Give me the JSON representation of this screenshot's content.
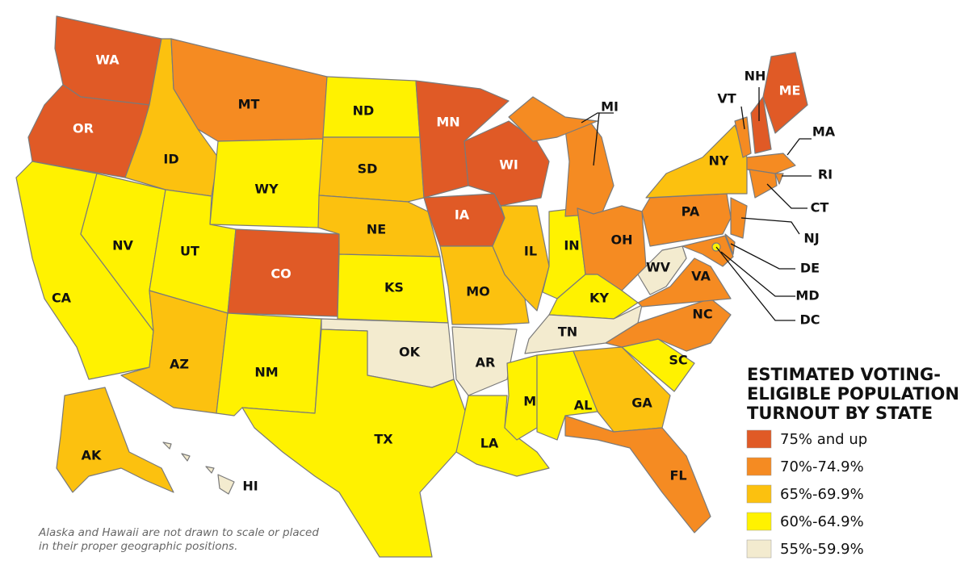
{
  "title": "ESTIMATED VOTING-ELIGIBLE POPULATION TURNOUT BY STATE",
  "legend": [
    {
      "label": "75% and up",
      "color": "#e05a26"
    },
    {
      "label": "70%-74.9%",
      "color": "#f58b22"
    },
    {
      "label": "65%-69.9%",
      "color": "#fcc10f"
    },
    {
      "label": "60%-64.9%",
      "color": "#fff200"
    },
    {
      "label": "55%-59.9%",
      "color": "#f3ebcf"
    }
  ],
  "states": [
    {
      "abbr": "WA",
      "color": "#e05a26"
    },
    {
      "abbr": "OR",
      "color": "#e05a26"
    },
    {
      "abbr": "CA",
      "color": "#fff200"
    },
    {
      "abbr": "NV",
      "color": "#fff200"
    },
    {
      "abbr": "ID",
      "color": "#fcc10f"
    },
    {
      "abbr": "MT",
      "color": "#f58b22"
    },
    {
      "abbr": "WY",
      "color": "#fff200"
    },
    {
      "abbr": "UT",
      "color": "#fff200"
    },
    {
      "abbr": "CO",
      "color": "#e05a26"
    },
    {
      "abbr": "AZ",
      "color": "#fcc10f"
    },
    {
      "abbr": "NM",
      "color": "#fff200"
    },
    {
      "abbr": "ND",
      "color": "#fff200"
    },
    {
      "abbr": "SD",
      "color": "#fcc10f"
    },
    {
      "abbr": "NE",
      "color": "#fcc10f"
    },
    {
      "abbr": "KS",
      "color": "#fff200"
    },
    {
      "abbr": "OK",
      "color": "#f3ebcf"
    },
    {
      "abbr": "TX",
      "color": "#fff200"
    },
    {
      "abbr": "MN",
      "color": "#e05a26"
    },
    {
      "abbr": "IA",
      "color": "#e05a26"
    },
    {
      "abbr": "MO",
      "color": "#fcc10f"
    },
    {
      "abbr": "AR",
      "color": "#f3ebcf"
    },
    {
      "abbr": "LA",
      "color": "#fff200"
    },
    {
      "abbr": "WI",
      "color": "#e05a26"
    },
    {
      "abbr": "IL",
      "color": "#fcc10f"
    },
    {
      "abbr": "IN",
      "color": "#fff200"
    },
    {
      "abbr": "MI",
      "color": "#f58b22"
    },
    {
      "abbr": "OH",
      "color": "#f58b22"
    },
    {
      "abbr": "KY",
      "color": "#fff200"
    },
    {
      "abbr": "TN",
      "color": "#f3ebcf"
    },
    {
      "abbr": "MS",
      "color": "#fff200"
    },
    {
      "abbr": "AL",
      "color": "#fff200"
    },
    {
      "abbr": "GA",
      "color": "#fcc10f"
    },
    {
      "abbr": "FL",
      "color": "#f58b22"
    },
    {
      "abbr": "SC",
      "color": "#fff200"
    },
    {
      "abbr": "NC",
      "color": "#f58b22"
    },
    {
      "abbr": "VA",
      "color": "#f58b22"
    },
    {
      "abbr": "WV",
      "color": "#f3ebcf"
    },
    {
      "abbr": "PA",
      "color": "#f58b22"
    },
    {
      "abbr": "NY",
      "color": "#fcc10f"
    },
    {
      "abbr": "NJ",
      "color": "#f58b22"
    },
    {
      "abbr": "DE",
      "color": "#f58b22"
    },
    {
      "abbr": "MD",
      "color": "#f58b22"
    },
    {
      "abbr": "DC",
      "color": "#fff200"
    },
    {
      "abbr": "VT",
      "color": "#f58b22"
    },
    {
      "abbr": "NH",
      "color": "#e05a26"
    },
    {
      "abbr": "ME",
      "color": "#e05a26"
    },
    {
      "abbr": "MA",
      "color": "#f58b22"
    },
    {
      "abbr": "RI",
      "color": "#f58b22"
    },
    {
      "abbr": "CT",
      "color": "#f58b22"
    },
    {
      "abbr": "AK",
      "color": "#fcc10f"
    },
    {
      "abbr": "HI",
      "color": "#f3ebcf"
    }
  ],
  "note": "Alaska and Hawaii are not drawn to scale or placed in their proper geographic positions."
}
